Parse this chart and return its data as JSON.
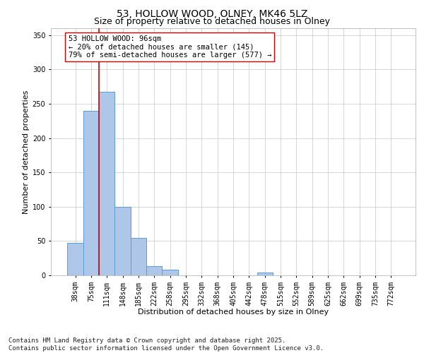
{
  "title_line1": "53, HOLLOW WOOD, OLNEY, MK46 5LZ",
  "title_line2": "Size of property relative to detached houses in Olney",
  "xlabel": "Distribution of detached houses by size in Olney",
  "ylabel": "Number of detached properties",
  "categories": [
    "38sqm",
    "75sqm",
    "111sqm",
    "148sqm",
    "185sqm",
    "222sqm",
    "258sqm",
    "295sqm",
    "332sqm",
    "368sqm",
    "405sqm",
    "442sqm",
    "478sqm",
    "515sqm",
    "552sqm",
    "589sqm",
    "625sqm",
    "662sqm",
    "699sqm",
    "735sqm",
    "772sqm"
  ],
  "values": [
    47,
    240,
    267,
    100,
    55,
    13,
    8,
    0,
    0,
    0,
    0,
    0,
    4,
    0,
    0,
    0,
    0,
    0,
    0,
    0,
    0
  ],
  "bar_color": "#aec6e8",
  "bar_edge_color": "#5b9bd5",
  "vline_color": "#cc0000",
  "vline_pos": 1.5,
  "annotation_text": "53 HOLLOW WOOD: 96sqm\n← 20% of detached houses are smaller (145)\n79% of semi-detached houses are larger (577) →",
  "annotation_box_color": "#ffffff",
  "annotation_box_edge": "#cc0000",
  "ylim": [
    0,
    360
  ],
  "yticks": [
    0,
    50,
    100,
    150,
    200,
    250,
    300,
    350
  ],
  "background_color": "#ffffff",
  "grid_color": "#d0d0d0",
  "footer_line1": "Contains HM Land Registry data © Crown copyright and database right 2025.",
  "footer_line2": "Contains public sector information licensed under the Open Government Licence v3.0.",
  "title_fontsize": 10,
  "subtitle_fontsize": 9,
  "axis_fontsize": 8,
  "tick_fontsize": 7,
  "annotation_fontsize": 7.5,
  "footer_fontsize": 6.5
}
